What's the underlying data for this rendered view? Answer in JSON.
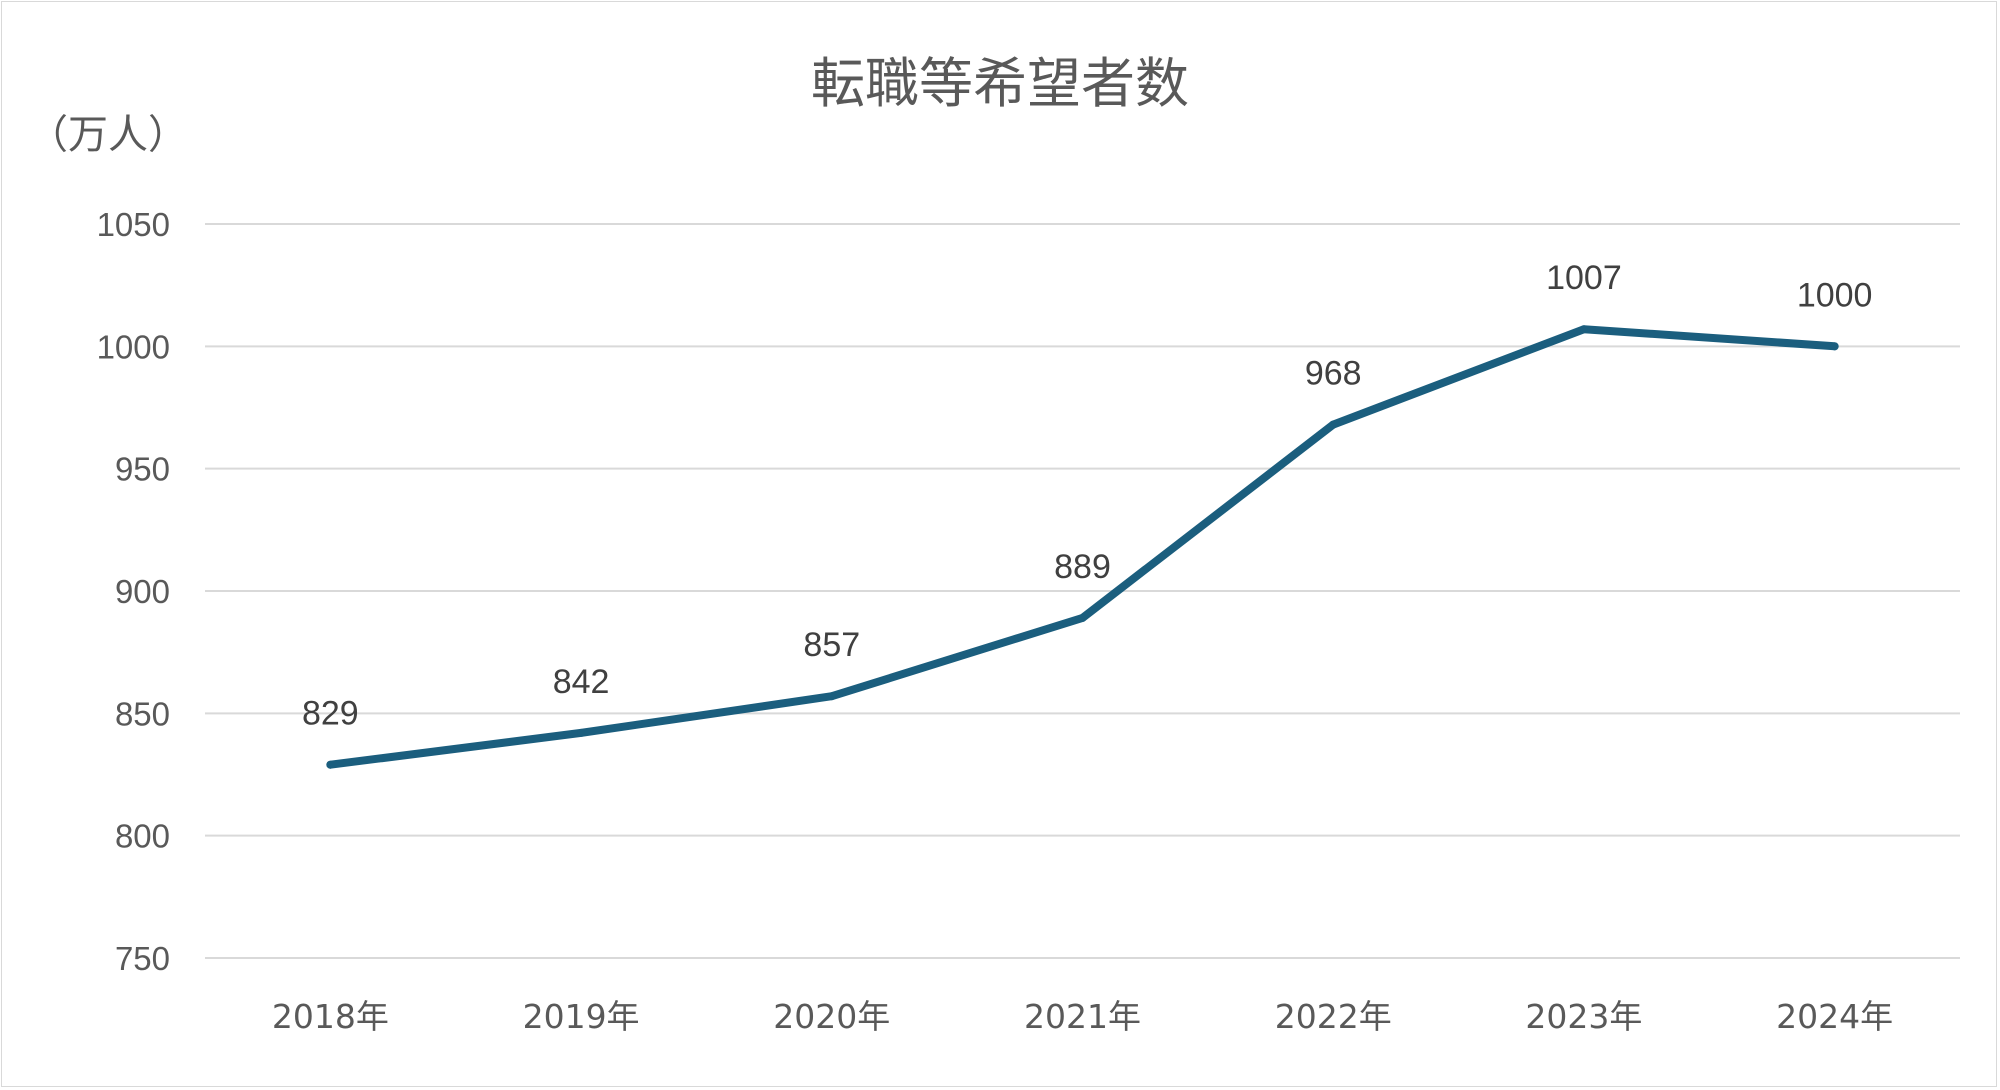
{
  "chart_data": {
    "type": "line",
    "title": "転職等希望者数",
    "ylabel": "（万人）",
    "xlabel": "",
    "categories": [
      "2018年",
      "2019年",
      "2020年",
      "2021年",
      "2022年",
      "2023年",
      "2024年"
    ],
    "series": [
      {
        "values": [
          829,
          842,
          857,
          889,
          968,
          1007,
          1000
        ],
        "color": "#1b5e7e"
      }
    ],
    "ylim": [
      750,
      1050
    ],
    "yticks": [
      750,
      800,
      850,
      900,
      950,
      1000,
      1050
    ],
    "ytick_labels": [
      "750",
      "800",
      "850",
      "900",
      "950",
      "1000",
      "1050"
    ],
    "data_labels": [
      "829",
      "842",
      "857",
      "889",
      "968",
      "1007",
      "1000"
    ],
    "grid": true,
    "legend": "none",
    "colors": {
      "line": "#1b5e7e",
      "grid": "#d9d9d9",
      "text": "#595959",
      "data_label": "#404040"
    }
  }
}
